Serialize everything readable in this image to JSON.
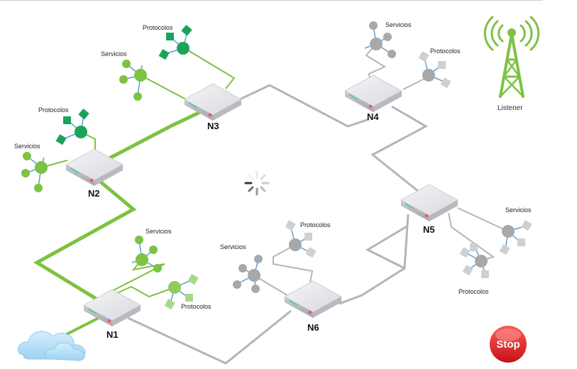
{
  "nodes": {
    "n1": {
      "label": "N1"
    },
    "n2": {
      "label": "N2"
    },
    "n3": {
      "label": "N3"
    },
    "n4": {
      "label": "N4"
    },
    "n5": {
      "label": "N5"
    },
    "n6": {
      "label": "N6"
    }
  },
  "clusters": {
    "n1_servicios": "Servicios",
    "n1_protocolos": "Protocolos",
    "n2_servicios": "Servicios",
    "n2_protocolos": "Protocolos",
    "n3_servicios": "Servicios",
    "n3_protocolos": "Protocolos",
    "n4_servicios": "Servicios",
    "n4_protocolos": "Protocolos",
    "n5_servicios": "Servicios",
    "n5_protocolos": "Protocolos",
    "n6_servicios": "Servicios",
    "n6_protocolos": "Protocolos"
  },
  "listener": {
    "label": "Listener",
    "icon": "radio-tower-icon"
  },
  "stop_button": {
    "label": "Stop"
  },
  "colors": {
    "active_link": "#7dc242",
    "inactive_link": "#b5b5b5",
    "active_service": "#7dc242",
    "active_protocol": "#1ba35a",
    "inactive_service": "#a8a8a8",
    "stop_red": "#e31e24"
  }
}
